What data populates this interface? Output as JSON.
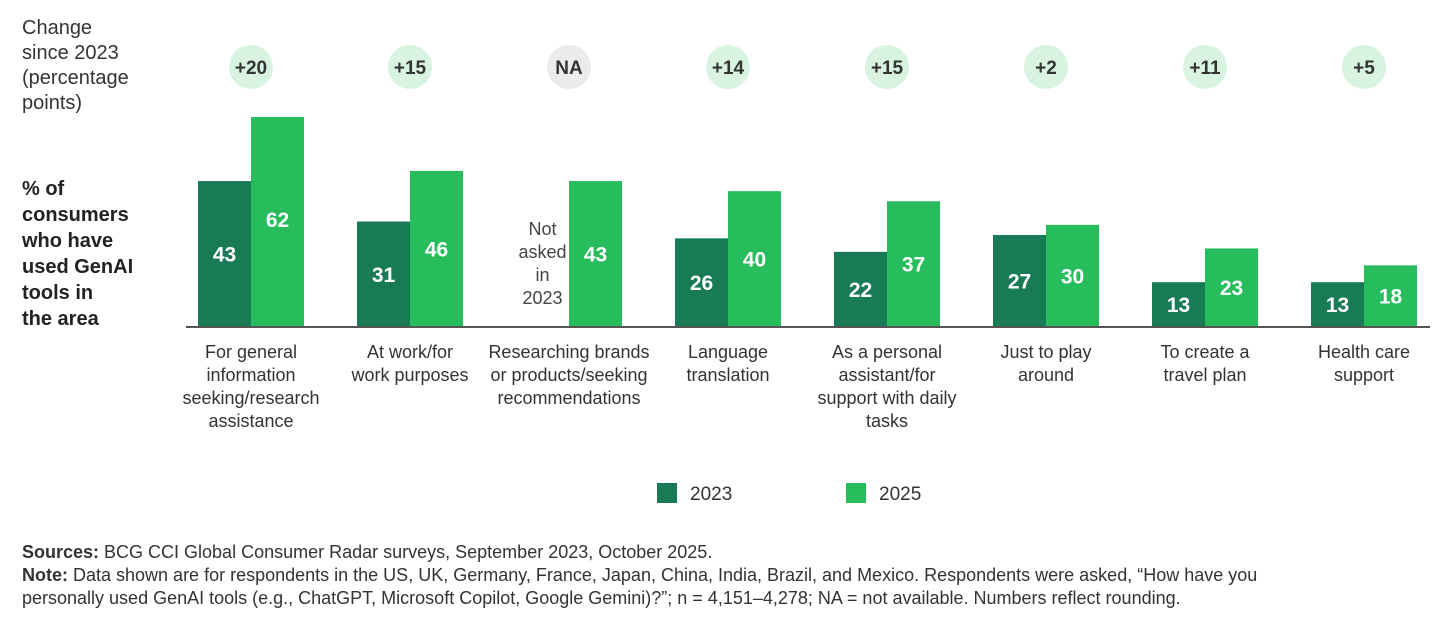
{
  "chart_data": {
    "type": "bar",
    "change_label": [
      "Change",
      "since 2023",
      "(percentage",
      "points)"
    ],
    "ylabel": [
      "% of",
      "consumers",
      "who have",
      "used GenAI",
      "tools in",
      "the area"
    ],
    "categories": [
      [
        "For general",
        "information",
        "seeking/research",
        "assistance"
      ],
      [
        "At work/for",
        "work purposes"
      ],
      [
        "Researching brands",
        "or products/seeking",
        "recommendations"
      ],
      [
        "Language",
        "translation"
      ],
      [
        "As a personal",
        "assistant/for",
        "support with daily",
        "tasks"
      ],
      [
        "Just to play",
        "around"
      ],
      [
        "To create a",
        "travel plan"
      ],
      [
        "Health care",
        "support"
      ]
    ],
    "series": [
      {
        "name": "2023",
        "color": "#197a56",
        "values": [
          43,
          31,
          null,
          26,
          22,
          27,
          13,
          13
        ]
      },
      {
        "name": "2025",
        "color": "#27bd5d",
        "values": [
          62,
          46,
          43,
          40,
          37,
          30,
          23,
          18
        ]
      }
    ],
    "change": [
      "+20",
      "+15",
      "NA",
      "+14",
      "+15",
      "+2",
      "+11",
      "+5"
    ],
    "missing_label": [
      "Not",
      "asked",
      "in",
      "2023"
    ],
    "legend": [
      "2023",
      "2025"
    ],
    "legend_placement": "bottom-center",
    "ylim": [
      0,
      62
    ]
  },
  "footer": {
    "sources_label": "Sources:",
    "sources_text": " BCG CCI Global Consumer Radar surveys, September 2023, October 2025.",
    "note_label": "Note:",
    "note_text": " Data shown are for respondents in the US, UK, Germany, France, Japan, China, India, Brazil, and Mexico. Respondents were asked, “How have you",
    "note_text2": "personally used GenAI tools (e.g., ChatGPT, Microsoft Copilot, Google Gemini)?”; n = 4,151–4,278; NA = not available. Numbers reflect rounding."
  }
}
